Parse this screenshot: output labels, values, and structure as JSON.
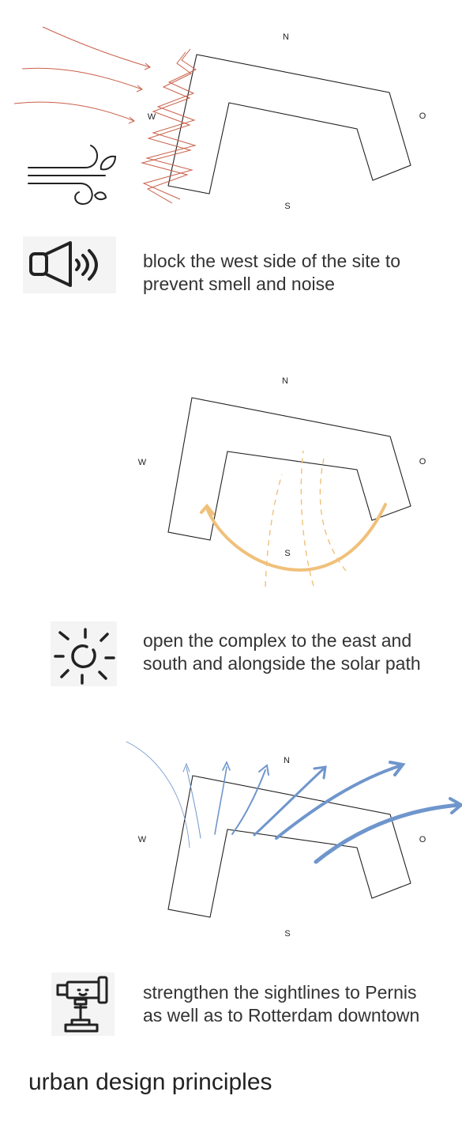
{
  "compass": {
    "north": "N",
    "south": "S",
    "west": "W",
    "east": "O"
  },
  "principles": [
    {
      "icon": "speaker-icon",
      "caption_line1": "block the west side of the site to",
      "caption_line2": "prevent smell and noise",
      "secondary_icon": "wind-icon",
      "accent": "#c9604a"
    },
    {
      "icon": "sun-icon",
      "caption_line1": "open the complex to the east and",
      "caption_line2": "south and alongside the solar path",
      "accent": "#f0c07a"
    },
    {
      "icon": "telescope-icon",
      "caption_line1": "strengthen the sightlines to Pernis",
      "caption_line2": "as well as to Rotterdam downtown",
      "accent": "#6f96cc"
    }
  ],
  "footer_title": "urban design principles"
}
